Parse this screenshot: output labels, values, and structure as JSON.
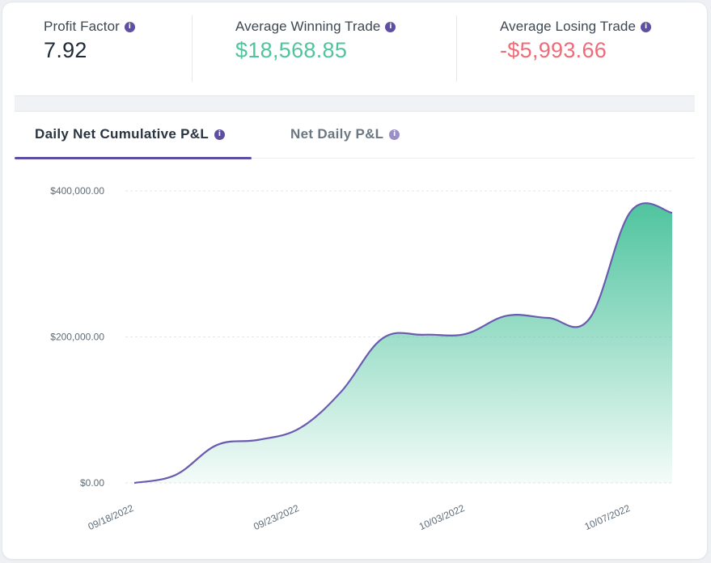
{
  "stats": {
    "profit_factor": {
      "label": "Profit Factor",
      "value": "7.92"
    },
    "avg_winning": {
      "label": "Average Winning Trade",
      "value": "$18,568.85"
    },
    "avg_losing": {
      "label": "Average Losing Trade",
      "value": "-$5,993.66"
    },
    "info_glyph": "i"
  },
  "tabs": [
    {
      "label": "Daily Net Cumulative P&L",
      "active": true
    },
    {
      "label": "Net Daily P&L",
      "active": false
    }
  ],
  "colors": {
    "accent": "#5b4ea6",
    "positive": "#4fc49e",
    "negative": "#ef6b77",
    "line": "#6a5bb0"
  },
  "chart_data": {
    "type": "area",
    "title": "Daily Net Cumulative P&L",
    "ylim": [
      0,
      400000
    ],
    "yticks": [
      {
        "value": 0,
        "label": "$0.00"
      },
      {
        "value": 200000,
        "label": "$200,000.00"
      },
      {
        "value": 400000,
        "label": "$400,000.00"
      }
    ],
    "x_tick_labels": [
      {
        "index": 0,
        "label": "09/18/2022"
      },
      {
        "index": 4,
        "label": "09/23/2022"
      },
      {
        "index": 8,
        "label": "10/03/2022"
      },
      {
        "index": 12,
        "label": "10/07/2022"
      }
    ],
    "series": [
      {
        "name": "Cumulative P&L",
        "values": [
          0,
          11000,
          52000,
          59000,
          75000,
          125000,
          198000,
          203000,
          204000,
          229000,
          226000,
          225000,
          372000,
          370000
        ]
      }
    ],
    "grid": true
  }
}
